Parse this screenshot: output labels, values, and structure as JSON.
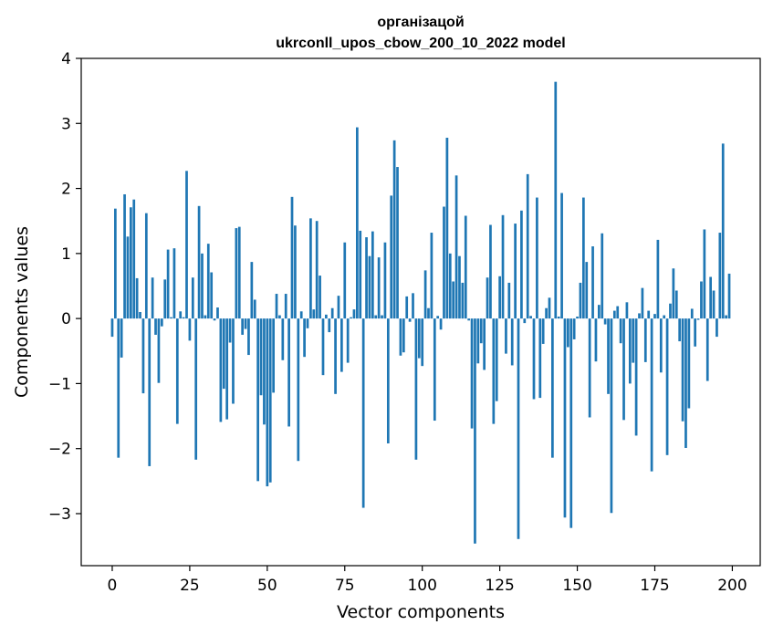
{
  "chart_data": {
    "type": "bar",
    "title_lines": [
      "організацой",
      "ukrconll_upos_cbow_200_10_2022 model"
    ],
    "xlabel": "Vector components",
    "ylabel": "Components values",
    "xlim": [
      -10,
      209
    ],
    "ylim": [
      -3.8,
      4.0
    ],
    "xticks": [
      0,
      25,
      50,
      75,
      100,
      125,
      150,
      175,
      200
    ],
    "xtick_labels": [
      "0",
      "25",
      "50",
      "75",
      "100",
      "125",
      "150",
      "175",
      "200"
    ],
    "yticks": [
      4,
      3,
      2,
      1,
      0,
      -1,
      -2,
      -3
    ],
    "ytick_labels": [
      "4",
      "3",
      "2",
      "1",
      "0",
      "−1",
      "−2",
      "−3"
    ],
    "bar_color": "#1f77b4",
    "values": [
      -0.28,
      1.69,
      -2.14,
      -0.6,
      1.91,
      1.26,
      1.71,
      1.83,
      0.62,
      0.1,
      -1.15,
      1.62,
      -2.27,
      0.63,
      -0.25,
      -0.99,
      -0.12,
      0.6,
      1.06,
      0.02,
      1.08,
      -1.62,
      0.11,
      0.02,
      2.27,
      -0.34,
      0.63,
      -2.17,
      1.73,
      1.0,
      0.05,
      1.15,
      0.71,
      -0.03,
      0.17,
      -1.59,
      -1.08,
      -1.55,
      -0.37,
      -1.31,
      1.39,
      1.41,
      -0.25,
      -0.16,
      -0.56,
      0.87,
      0.29,
      -2.5,
      -1.18,
      -1.63,
      -2.58,
      -2.52,
      -1.14,
      0.38,
      0.05,
      -0.64,
      0.38,
      -1.66,
      1.87,
      1.43,
      -2.19,
      0.11,
      -0.59,
      -0.15,
      1.54,
      0.14,
      1.5,
      0.66,
      -0.87,
      0.06,
      -0.21,
      0.16,
      -1.16,
      0.35,
      -0.82,
      1.17,
      -0.68,
      0.02,
      0.14,
      2.94,
      1.35,
      -2.91,
      1.25,
      0.96,
      1.34,
      0.05,
      0.94,
      0.05,
      1.17,
      -1.92,
      1.89,
      2.74,
      2.33,
      -0.57,
      -0.52,
      0.34,
      -0.05,
      0.39,
      -2.17,
      -0.61,
      -0.73,
      0.74,
      0.16,
      1.32,
      -1.57,
      0.04,
      -0.17,
      1.72,
      2.78,
      1.0,
      0.57,
      2.2,
      0.96,
      0.55,
      1.58,
      -0.03,
      -1.69,
      -3.46,
      -0.69,
      -0.38,
      -0.79,
      0.63,
      1.44,
      -1.62,
      -1.27,
      0.65,
      1.59,
      -0.54,
      0.55,
      -0.72,
      1.46,
      -3.39,
      1.66,
      -0.07,
      2.22,
      0.04,
      -1.24,
      1.86,
      -1.22,
      -0.39,
      0.16,
      0.32,
      -2.14,
      3.64,
      0.03,
      1.93,
      -3.06,
      -0.44,
      -3.22,
      -0.32,
      0.03,
      0.55,
      1.86,
      0.87,
      -1.52,
      1.11,
      -0.66,
      0.21,
      1.31,
      -0.09,
      -1.16,
      -2.99,
      0.12,
      0.19,
      -0.38,
      -1.56,
      0.25,
      -1.0,
      -0.68,
      -1.8,
      0.08,
      0.47,
      -0.67,
      0.12,
      -2.35,
      0.07,
      1.21,
      -0.83,
      0.05,
      -2.1,
      0.23,
      0.77,
      0.43,
      -0.35,
      -1.58,
      -1.99,
      -1.38,
      0.15,
      -0.43,
      -0.02,
      0.57,
      1.37,
      -0.96,
      0.64,
      0.43,
      -0.28,
      1.32,
      2.69,
      0.05,
      0.69
    ]
  }
}
